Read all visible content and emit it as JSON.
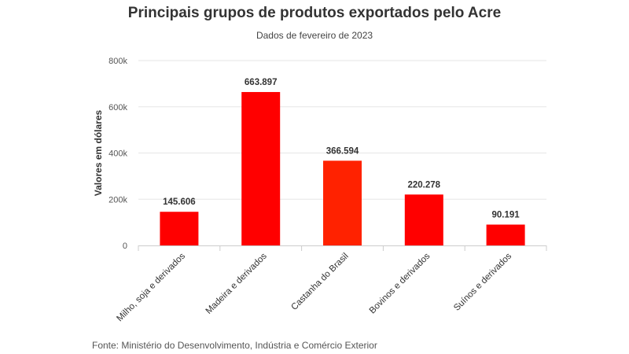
{
  "header": {
    "title": "Principais grupos de produtos exportados pelo Acre",
    "subtitle": "Dados de fevereiro de 2023"
  },
  "footer": {
    "source": "Fonte: Ministério do Desenvolvimento, Indústria e Comércio Exterior"
  },
  "chart_data": {
    "type": "bar",
    "title": "Principais grupos de produtos exportados pelo Acre",
    "subtitle": "Dados de fevereiro de 2023",
    "xlabel": "",
    "ylabel": "Valores em dólares",
    "ylim": [
      0,
      800000
    ],
    "yticks": [
      0,
      200000,
      400000,
      600000,
      800000
    ],
    "ytick_labels": [
      "0",
      "200k",
      "400k",
      "600k",
      "800k"
    ],
    "grid": true,
    "categories": [
      "Milho, soja e derivados",
      "Madeira e derivados",
      "Castanha do Brasil",
      "Bovinos e derivados",
      "Suínos e derivados"
    ],
    "values": [
      145606,
      663897,
      366594,
      220278,
      90191
    ],
    "value_labels": [
      "145.606",
      "663.897",
      "366.594",
      "220.278",
      "90.191"
    ],
    "colors": [
      "#ff0000",
      "#ff0000",
      "#ff2200",
      "#ff0000",
      "#ff0000"
    ]
  }
}
